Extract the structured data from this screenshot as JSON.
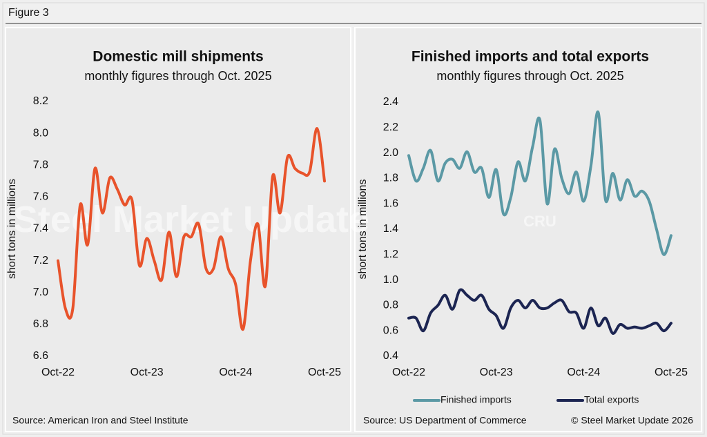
{
  "figure_label": "Figure 3",
  "chart_data": [
    {
      "type": "line",
      "title": "Domestic mill shipments",
      "subtitle": "monthly figures through Oct. 2025",
      "ylabel": "short tons in millions",
      "categories": [
        "Oct-22",
        null,
        null,
        null,
        null,
        null,
        null,
        null,
        null,
        null,
        null,
        null,
        "Oct-23",
        null,
        null,
        null,
        null,
        null,
        null,
        null,
        null,
        null,
        null,
        null,
        "Oct-24",
        null,
        null,
        null,
        null,
        null,
        null,
        null,
        null,
        null,
        null,
        null,
        "Oct-25"
      ],
      "series": [
        {
          "name": "Domestic mill shipments",
          "color": "#e8532b",
          "values": [
            7.2,
            6.9,
            6.9,
            7.55,
            7.3,
            7.78,
            7.5,
            7.72,
            7.65,
            7.55,
            7.58,
            7.17,
            7.34,
            7.2,
            7.08,
            7.38,
            7.1,
            7.35,
            7.35,
            7.43,
            7.15,
            7.15,
            7.35,
            7.15,
            7.05,
            6.77,
            7.2,
            7.43,
            7.04,
            7.73,
            7.5,
            7.85,
            7.78,
            7.75,
            7.76,
            8.03,
            7.7
          ]
        }
      ],
      "ylim": [
        6.6,
        8.2
      ],
      "yticks": [
        6.6,
        6.8,
        {
          "value": 7,
          "label": "7.0"
        },
        7.2,
        7.4,
        7.6,
        7.8,
        {
          "value": 8,
          "label": "8.0"
        },
        8.2
      ],
      "grid": false,
      "legend": false,
      "watermark": "Steel Market Update",
      "source": "Source: American Iron and Steel Institute"
    },
    {
      "type": "line",
      "title": "Finished imports and total exports",
      "subtitle": "monthly figures through Oct. 2025",
      "ylabel": "short tons in millions",
      "categories": [
        "Oct-22",
        null,
        null,
        null,
        null,
        null,
        null,
        null,
        null,
        null,
        null,
        null,
        "Oct-23",
        null,
        null,
        null,
        null,
        null,
        null,
        null,
        null,
        null,
        null,
        null,
        "Oct-24",
        null,
        null,
        null,
        null,
        null,
        null,
        null,
        null,
        null,
        null,
        null,
        "Oct-25"
      ],
      "series": [
        {
          "name": "Finished imports",
          "color": "#5b99a5",
          "values": [
            1.98,
            1.78,
            1.88,
            2.02,
            1.78,
            1.92,
            1.95,
            1.88,
            2.01,
            1.85,
            1.88,
            1.65,
            1.87,
            1.52,
            1.65,
            1.93,
            1.78,
            2.05,
            2.26,
            1.6,
            2.03,
            1.8,
            1.68,
            1.85,
            1.62,
            1.9,
            2.32,
            1.63,
            1.84,
            1.63,
            1.79,
            1.66,
            1.7,
            1.62,
            1.4,
            1.2,
            1.35
          ]
        },
        {
          "name": "Total exports",
          "color": "#1c2552",
          "values": [
            0.7,
            0.7,
            0.6,
            0.74,
            0.8,
            0.88,
            0.77,
            0.92,
            0.88,
            0.84,
            0.88,
            0.77,
            0.72,
            0.62,
            0.78,
            0.84,
            0.78,
            0.84,
            0.78,
            0.78,
            0.82,
            0.84,
            0.75,
            0.74,
            0.62,
            0.78,
            0.64,
            0.7,
            0.58,
            0.65,
            0.62,
            0.63,
            0.62,
            0.64,
            0.66,
            0.6,
            0.66
          ]
        }
      ],
      "ylim": [
        0.4,
        2.4
      ],
      "yticks": [
        0.4,
        0.6,
        0.8,
        {
          "value": 1,
          "label": "1.0"
        },
        1.2,
        1.4,
        1.6,
        1.8,
        {
          "value": 2,
          "label": "2.0"
        },
        2.2,
        2.4
      ],
      "grid": false,
      "legend": "bottom",
      "watermark": "CRU",
      "source": "Source: US Department of Commerce",
      "credit": "© Steel Market Update 2026"
    }
  ]
}
